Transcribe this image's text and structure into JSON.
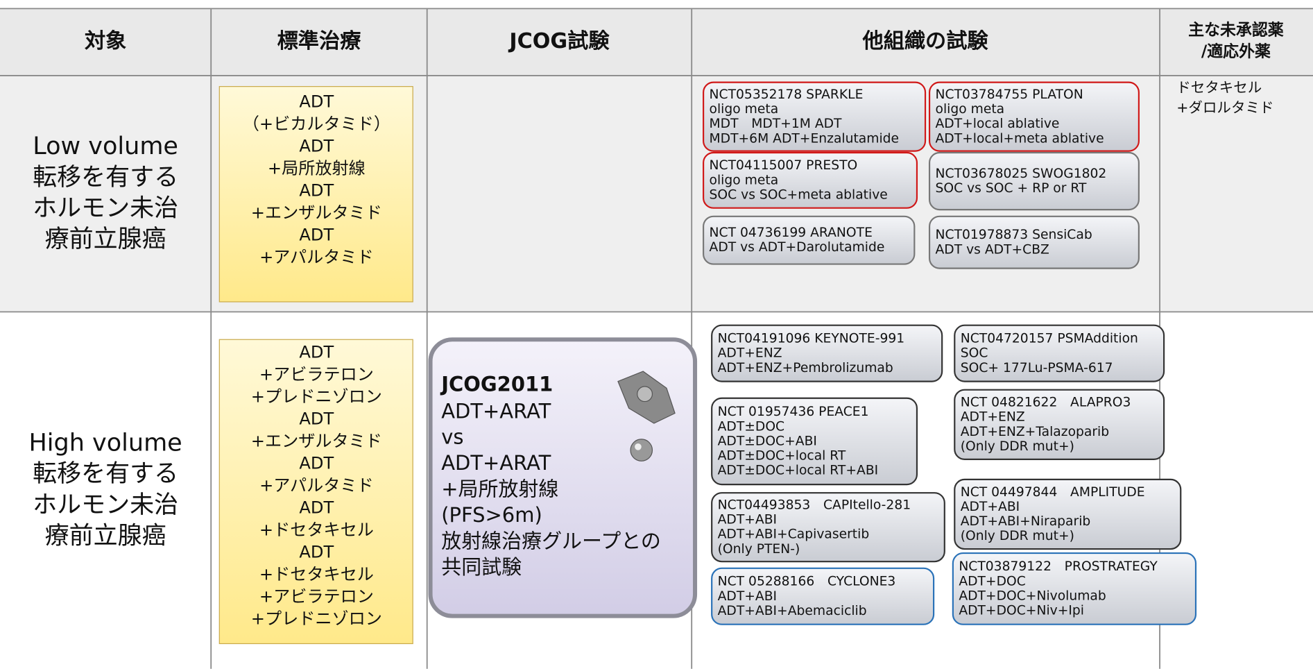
{
  "header": [
    "対象",
    "標準治療",
    "JCOG試験",
    "他組織の試験",
    [
      "主な未承認薬",
      "/適応外薬"
    ]
  ],
  "rows": [
    {
      "subject": [
        "Low volume",
        "転移を有する",
        "ホルモン未治",
        "療前立腺癌"
      ],
      "standard": [
        "ADT",
        "（+ビカルタミド）",
        "ADT",
        "+局所放射線",
        "ADT",
        "+エンザルタミド",
        "ADT",
        "+アパルタミド"
      ],
      "trials": [
        {
          "lines": [
            "NCT05352178 SPARKLE",
            "oligo meta",
            "MDT　MDT+1M ADT",
            "MDT+6M ADT+Enzalutamide"
          ],
          "border": "#d01818"
        },
        {
          "lines": [
            "NCT03784755 PLATON",
            "oligo meta",
            "ADT+local ablative",
            "ADT+local+meta ablative"
          ],
          "border": "#d01818"
        },
        {
          "lines": [
            "NCT04115007 PRESTO",
            "oligo meta",
            "SOC vs  SOC+meta ablative"
          ],
          "border": "#d01818"
        },
        {
          "lines": [
            "NCT03678025 SWOG1802",
            "SOC vs SOC + RP or RT"
          ],
          "border": "#777777"
        },
        {
          "lines": [
            "NCT 04736199 ARANOTE",
            "ADT vs  ADT+Darolutamide"
          ],
          "border": "#777777"
        },
        {
          "lines": [
            "NCT01978873  SensiCab",
            "ADT vs ADT+CBZ"
          ],
          "border": "#777777"
        }
      ],
      "unapproved": [
        "ドセタキセル",
        "+ダロルタミド"
      ]
    },
    {
      "subject": [
        "High volume",
        "転移を有する",
        "ホルモン未治",
        "療前立腺癌"
      ],
      "standard": [
        "ADT",
        "+アビラテロン",
        "+プレドニゾロン",
        "ADT",
        "+エンザルタミド",
        "ADT",
        "+アパルタミド",
        "ADT",
        "+ドセタキセル",
        "ADT",
        "+ドセタキセル",
        "+アビラテロン",
        "+プレドニゾロン"
      ],
      "jcog": {
        "title": "JCOG2011",
        "lines": [
          "ADT+ARAT",
          "vs",
          "ADT+ARAT",
          "+局所放射線",
          "(PFS>6m)",
          "放射線治療グループとの",
          "共同試験"
        ]
      },
      "trials": [
        {
          "lines": [
            "NCT04191096 KEYNOTE-991",
            "ADT+ENZ",
            "ADT+ENZ+Pembrolizumab"
          ],
          "border": "#333333"
        },
        {
          "lines": [
            "NCT04720157 PSMAddition",
            "SOC",
            "SOC+ 177Lu-PSMA-617"
          ],
          "border": "#333333"
        },
        {
          "lines": [
            "NCT 01957436 PEACE1",
            "ADT±DOC",
            "ADT±DOC+ABI",
            "ADT±DOC+local RT",
            "ADT±DOC+local RT+ABI"
          ],
          "border": "#333333"
        },
        {
          "lines": [
            "NCT 04821622　ALAPRO3",
            "ADT+ENZ",
            "ADT+ENZ+Talazoparib",
            "(Only DDR mut+)"
          ],
          "border": "#333333"
        },
        {
          "lines": [
            "NCT04493853　CAPItello-281",
            "ADT+ABI",
            "ADT+ABI+Capivasertib",
            "(Only PTEN-)"
          ],
          "border": "#333333"
        },
        {
          "lines": [
            "NCT 04497844　AMPLITUDE",
            "ADT+ABI",
            "ADT+ABI+Niraparib",
            "(Only DDR mut+)"
          ],
          "border": "#333333"
        },
        {
          "lines": [
            "NCT 05288166　CYCLONE3",
            "ADT+ABI",
            "ADT+ABI+Abemaciclib"
          ],
          "border": "#2a72b8"
        },
        {
          "lines": [
            "NCT03879122　PROSTRATEGY",
            "ADT+DOC",
            "ADT+DOC+Nivolumab",
            "ADT+DOC+Niv+Ipi"
          ],
          "border": "#2a72b8"
        }
      ]
    }
  ]
}
